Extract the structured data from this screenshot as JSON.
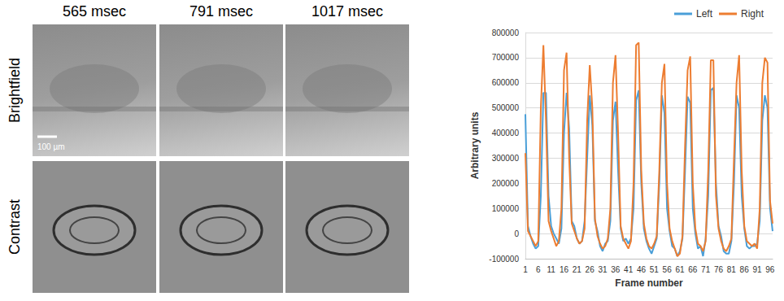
{
  "chart_data": {
    "type": "line",
    "x_label": "Frame number",
    "y_label": "Arbitrary units",
    "categories": [
      1,
      null,
      null,
      null,
      null,
      6,
      null,
      null,
      null,
      null,
      11,
      null,
      null,
      null,
      null,
      16,
      null,
      null,
      null,
      null,
      21,
      null,
      null,
      null,
      null,
      26,
      null,
      null,
      null,
      null,
      31,
      null,
      null,
      null,
      null,
      36,
      null,
      null,
      null,
      null,
      41,
      null,
      null,
      null,
      null,
      46,
      null,
      null,
      null,
      null,
      51,
      null,
      null,
      null,
      null,
      56,
      null,
      null,
      null,
      null,
      61,
      null,
      null,
      null,
      null,
      66,
      null,
      null,
      null,
      null,
      71,
      null,
      null,
      null,
      null,
      76,
      null,
      null,
      null,
      null,
      81,
      null,
      null,
      null,
      null,
      86,
      null,
      null,
      null,
      null,
      91,
      null,
      null,
      null,
      null,
      96,
      null
    ],
    "series": [
      {
        "name": "Left",
        "color": "#4a9fd8",
        "values": [
          475000,
          30000,
          -10000,
          -40000,
          -60000,
          -50000,
          150000,
          560000,
          560000,
          150000,
          30000,
          0,
          -20000,
          -40000,
          20000,
          400000,
          560000,
          420000,
          50000,
          30000,
          -20000,
          -40000,
          -30000,
          50000,
          300000,
          550000,
          430000,
          50000,
          10000,
          -50000,
          -70000,
          -40000,
          -30000,
          50000,
          450000,
          525000,
          250000,
          20000,
          -30000,
          -20000,
          -40000,
          -20000,
          100000,
          530000,
          570000,
          200000,
          20000,
          -30000,
          -60000,
          -80000,
          -50000,
          -20000,
          200000,
          550000,
          480000,
          100000,
          10000,
          -50000,
          -60000,
          -90000,
          -70000,
          -20000,
          250000,
          545000,
          520000,
          100000,
          0,
          -60000,
          -50000,
          -90000,
          -20000,
          150000,
          570000,
          580000,
          200000,
          30000,
          -10000,
          -70000,
          -80000,
          -80000,
          -30000,
          200000,
          550000,
          500000,
          150000,
          20000,
          -50000,
          -60000,
          -50000,
          -50000,
          -40000,
          50000,
          450000,
          550000,
          500000,
          100000,
          10000
        ]
      },
      {
        "name": "Right",
        "color": "#ed7d31",
        "values": [
          320000,
          10000,
          -10000,
          -30000,
          -50000,
          -30000,
          500000,
          750000,
          450000,
          50000,
          10000,
          -20000,
          -50000,
          -30000,
          100000,
          650000,
          720000,
          300000,
          40000,
          10000,
          -20000,
          -40000,
          -30000,
          20000,
          450000,
          670000,
          500000,
          60000,
          -10000,
          -40000,
          -60000,
          -50000,
          -20000,
          100000,
          600000,
          710000,
          400000,
          30000,
          -20000,
          -40000,
          -60000,
          -30000,
          200000,
          750000,
          760000,
          250000,
          40000,
          -20000,
          -50000,
          -60000,
          -40000,
          -10000,
          250000,
          600000,
          675000,
          200000,
          20000,
          -30000,
          -60000,
          -90000,
          -80000,
          -10000,
          350000,
          650000,
          705000,
          200000,
          20000,
          -40000,
          -50000,
          -70000,
          -30000,
          250000,
          690000,
          690000,
          150000,
          20000,
          -30000,
          -60000,
          -70000,
          -50000,
          -20000,
          300000,
          600000,
          710000,
          250000,
          30000,
          -30000,
          -40000,
          -50000,
          -40000,
          -60000,
          100000,
          600000,
          700000,
          680000,
          130000,
          40000
        ]
      }
    ],
    "ylim": [
      -100000,
      800000
    ],
    "yticks": [
      -100000,
      0,
      100000,
      200000,
      300000,
      400000,
      500000,
      600000,
      700000,
      800000
    ],
    "grid": true,
    "legend": "upper right"
  },
  "image_panels": {
    "column_titles": [
      "565 msec",
      "791 msec",
      "1017 msec"
    ],
    "row_titles": [
      "Brightfield",
      "Contrast"
    ],
    "scale_bar": "100 µm"
  }
}
